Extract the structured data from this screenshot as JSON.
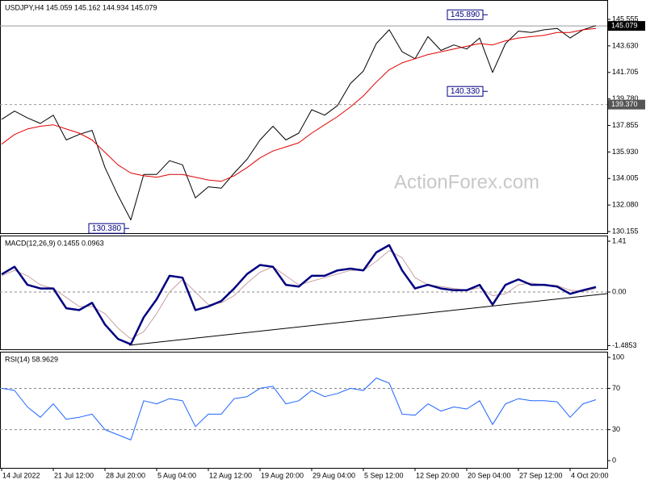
{
  "chart_data": [
    {
      "type": "line",
      "title": "USDJPY,H4 145.059 145.162 144.934 145.079",
      "x": [
        0,
        8,
        16,
        24,
        32,
        40,
        48,
        56,
        64,
        72,
        80,
        88,
        96,
        104,
        112,
        120,
        128,
        136,
        144,
        152,
        160,
        168,
        176,
        184,
        192,
        200,
        208,
        216,
        224,
        232,
        240,
        248,
        256,
        264,
        272,
        280,
        288,
        296,
        304,
        312,
        320,
        328,
        336,
        344,
        352,
        360,
        368
      ],
      "series": [
        {
          "color": "#000000",
          "line_width": 1,
          "values": [
            138.3,
            138.9,
            138.4,
            138.0,
            138.6,
            136.8,
            137.2,
            137.5,
            134.8,
            132.8,
            131.0,
            134.3,
            134.3,
            135.3,
            135.0,
            132.6,
            133.4,
            133.3,
            134.4,
            135.4,
            136.8,
            137.8,
            136.8,
            137.3,
            139.0,
            138.6,
            139.3,
            140.9,
            141.8,
            143.8,
            144.8,
            143.2,
            142.7,
            144.3,
            143.3,
            143.7,
            143.4,
            144.2,
            141.7,
            143.8,
            144.7,
            144.6,
            144.8,
            144.9,
            144.2,
            144.8,
            145.1
          ]
        },
        {
          "color": "#e00000",
          "line_width": 1,
          "values": [
            136.5,
            137.2,
            137.6,
            137.8,
            137.9,
            137.6,
            137.3,
            136.8,
            135.9,
            135.0,
            134.4,
            134.2,
            134.1,
            134.3,
            134.3,
            134.1,
            133.9,
            133.8,
            134.2,
            134.8,
            135.5,
            136.0,
            136.3,
            136.6,
            137.3,
            137.9,
            138.5,
            139.2,
            140.0,
            141.0,
            141.9,
            142.4,
            142.7,
            143.0,
            143.2,
            143.4,
            143.6,
            143.8,
            143.7,
            144.0,
            144.2,
            144.3,
            144.4,
            144.6,
            144.6,
            144.8,
            144.9
          ]
        }
      ],
      "xlim": [
        -1,
        375
      ],
      "ylim": [
        130.04,
        146.96
      ],
      "yticks": [
        145.555,
        {
          "value": 143.63,
          "label": "143.630"
        },
        141.705,
        {
          "value": 139.78,
          "label": "139.780"
        },
        137.855,
        {
          "value": 135.93,
          "label": "135.930"
        },
        134.005,
        {
          "value": 132.08,
          "label": "132.080"
        },
        130.155
      ],
      "hlines": [
        {
          "value": 145.079,
          "label": "145.079",
          "color": "#000000"
        },
        {
          "value": 139.37,
          "label": "139.370",
          "color": "#555555"
        }
      ],
      "annotations": [
        {
          "text": "145.890",
          "x": 301,
          "y": 145.89
        },
        {
          "text": "140.330",
          "x": 301,
          "y": 140.33
        },
        {
          "text": "130.380",
          "x": 79,
          "y": 130.38
        }
      ],
      "watermark": "ActionForex.com"
    },
    {
      "type": "line",
      "title": "MACD(12,26,9) 0.1455 0.0963",
      "x": [
        0,
        8,
        16,
        24,
        32,
        40,
        48,
        56,
        64,
        72,
        80,
        88,
        96,
        104,
        112,
        120,
        128,
        136,
        144,
        152,
        160,
        168,
        176,
        184,
        192,
        200,
        208,
        216,
        224,
        232,
        240,
        248,
        256,
        264,
        272,
        280,
        288,
        296,
        304,
        312,
        320,
        328,
        336,
        344,
        352,
        360,
        368
      ],
      "series": [
        {
          "color": "#c8a0a0",
          "line_width": 1,
          "values": [
            0.45,
            0.6,
            0.45,
            0.2,
            0.1,
            -0.15,
            -0.4,
            -0.4,
            -0.6,
            -1.0,
            -1.3,
            -1.1,
            -0.6,
            0.0,
            0.35,
            0.0,
            -0.35,
            -0.3,
            -0.1,
            0.25,
            0.55,
            0.7,
            0.45,
            0.2,
            0.3,
            0.4,
            0.5,
            0.6,
            0.6,
            0.85,
            1.15,
            0.95,
            0.4,
            0.2,
            0.15,
            0.1,
            0.05,
            0.12,
            -0.1,
            -0.05,
            0.2,
            0.25,
            0.2,
            0.18,
            0.05,
            0.02,
            0.1
          ]
        },
        {
          "color": "#000080",
          "line_width": 2.5,
          "values": [
            0.49,
            0.7,
            0.2,
            0.1,
            0.1,
            -0.45,
            -0.5,
            -0.3,
            -0.9,
            -1.3,
            -1.45,
            -0.7,
            -0.2,
            0.45,
            0.4,
            -0.5,
            -0.4,
            -0.25,
            0.1,
            0.5,
            0.75,
            0.7,
            0.2,
            0.15,
            0.45,
            0.45,
            0.6,
            0.65,
            0.6,
            1.1,
            1.3,
            0.6,
            0.1,
            0.2,
            0.1,
            0.05,
            0.05,
            0.2,
            -0.35,
            0.2,
            0.35,
            0.2,
            0.2,
            0.15,
            -0.05,
            0.05,
            0.14
          ]
        }
      ],
      "xlim": [
        -1,
        375
      ],
      "ylim": [
        -1.588,
        1.567
      ],
      "yticks": [
        1.41,
        {
          "value": 0,
          "label": "0.00"
        },
        -1.4853
      ],
      "hlines": [
        0
      ]
    },
    {
      "type": "line",
      "title": "RSI(14) 58.9629",
      "x": [
        0,
        8,
        16,
        24,
        32,
        40,
        48,
        56,
        64,
        72,
        80,
        88,
        96,
        104,
        112,
        120,
        128,
        136,
        144,
        152,
        160,
        168,
        176,
        184,
        192,
        200,
        208,
        216,
        224,
        232,
        240,
        248,
        256,
        264,
        272,
        280,
        288,
        296,
        304,
        312,
        320,
        328,
        336,
        344,
        352,
        360,
        368
      ],
      "series": [
        {
          "color": "#1e64ff",
          "line_width": 1,
          "values": [
            70,
            68,
            52,
            42,
            55,
            40,
            42,
            45,
            30,
            25,
            20,
            58,
            55,
            60,
            58,
            33,
            45,
            45,
            60,
            62,
            70,
            72,
            55,
            58,
            68,
            62,
            65,
            70,
            68,
            80,
            75,
            45,
            44,
            55,
            48,
            52,
            50,
            58,
            35,
            55,
            60,
            58,
            58,
            57,
            42,
            55,
            59
          ]
        }
      ],
      "xlim": [
        -1,
        375
      ],
      "ylim": [
        -7,
        105.5
      ],
      "yticks": [
        100,
        70,
        30,
        0
      ],
      "hlines": [
        70,
        30
      ],
      "xticks": [
        {
          "value": 0,
          "label": "14 Jul 2022"
        },
        {
          "value": 32,
          "label": "21 Jul 12:00"
        },
        {
          "value": 64,
          "label": "28 Jul 20:00"
        },
        {
          "value": 96,
          "label": "5 Aug 04:00"
        },
        {
          "value": 128,
          "label": "12 Aug 12:00"
        },
        {
          "value": 160,
          "label": "19 Aug 20:00"
        },
        {
          "value": 192,
          "label": "29 Aug 04:00"
        },
        {
          "value": 224,
          "label": "5 Sep 12:00"
        },
        {
          "value": 256,
          "label": "12 Sep 20:00"
        },
        {
          "value": 288,
          "label": "20 Sep 04:00"
        },
        {
          "value": 320,
          "label": "27 Sep 12:00"
        },
        {
          "value": 352,
          "label": "4 Oct 20:00"
        }
      ]
    }
  ]
}
